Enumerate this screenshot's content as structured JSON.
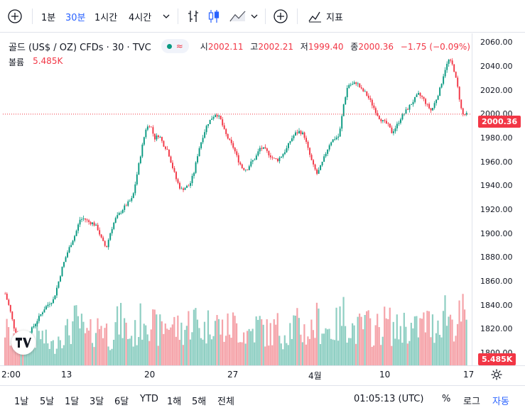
{
  "toolbar": {
    "add_symbol": "+",
    "intervals": [
      "1분",
      "30분",
      "1시간",
      "4시간"
    ],
    "active_interval": "30분",
    "indicators_label": "지표",
    "compare_symbol": "+"
  },
  "legend": {
    "title": "골드 (US$ / OZ) CFDs · 30 · TVC",
    "approx_icon": "≈",
    "open_label": "시",
    "open": "2002.11",
    "high_label": "고",
    "high": "2002.21",
    "low_label": "저",
    "low": "1999.40",
    "close_label": "종",
    "close": "2000.36",
    "change": "−1.75 (−0.09%)",
    "volume_label": "볼륨",
    "volume": "5.485K"
  },
  "price_axis": {
    "ticks": [
      "2060.00",
      "2040.00",
      "2020.00",
      "2000.00",
      "1980.00",
      "1960.00",
      "1940.00",
      "1920.00",
      "1900.00",
      "1880.00",
      "1860.00",
      "1840.00",
      "1820.00",
      "1800.00"
    ],
    "current_price": "2000.36",
    "current_volume": "5.485K"
  },
  "time_axis": {
    "ticks": [
      "2:00",
      "13",
      "20",
      "27",
      "4월",
      "10",
      "17"
    ]
  },
  "bottom": {
    "ranges": [
      "1날",
      "5날",
      "1달",
      "3달",
      "6달",
      "YTD",
      "1해",
      "5해",
      "전체"
    ],
    "clock": "01:05:13 (UTC)",
    "percent": "%",
    "log": "로그",
    "auto": "자동"
  },
  "colors": {
    "up": "#089981",
    "down": "#f23645",
    "accent": "#2962ff"
  },
  "chart_data": {
    "type": "candlestick",
    "title": "골드 (US$ / OZ) CFDs · 30 · TVC",
    "ylim": [
      1790,
      2068
    ],
    "price_path": [
      1850,
      1838,
      1822,
      1814,
      1812,
      1816,
      1820,
      1826,
      1832,
      1838,
      1842,
      1845,
      1858,
      1872,
      1883,
      1892,
      1900,
      1912,
      1913,
      1910,
      1909,
      1905,
      1895,
      1888,
      1902,
      1912,
      1917,
      1922,
      1926,
      1930,
      1950,
      1970,
      1988,
      1992,
      1980,
      1983,
      1975,
      1970,
      1957,
      1945,
      1937,
      1939,
      1941,
      1952,
      1970,
      1982,
      1992,
      1997,
      2001,
      1996,
      1985,
      1978,
      1972,
      1962,
      1955,
      1954,
      1960,
      1964,
      1972,
      1971,
      1967,
      1963,
      1962,
      1966,
      1971,
      1979,
      1984,
      1986,
      1983,
      1970,
      1958,
      1950,
      1958,
      1968,
      1977,
      1980,
      1982,
      2008,
      2025,
      2025,
      2027,
      2021,
      2018,
      2012,
      2005,
      1998,
      1994,
      1992,
      1985,
      1990,
      1997,
      2002,
      2007,
      2012,
      2017,
      2014,
      2008,
      2003,
      2012,
      2022,
      2037,
      2046,
      2040,
      2022,
      2000,
      2000
    ],
    "volume_path": [
      0.6,
      0.45,
      0.35,
      0.35,
      0.3,
      0.35,
      0.4,
      0.45,
      0.5,
      0.4,
      0.35,
      0.3,
      0.45,
      0.55,
      0.5,
      0.6,
      0.7,
      0.65,
      0.5,
      0.45,
      0.55,
      0.6,
      0.7,
      0.55,
      0.45,
      0.6,
      0.7,
      0.65,
      0.5,
      0.45,
      0.55,
      0.7,
      0.9,
      0.75,
      0.6,
      0.55,
      0.6,
      0.7,
      0.65,
      0.6,
      0.55,
      0.6,
      0.7,
      0.75,
      0.65,
      0.55,
      0.6,
      0.8,
      0.7,
      0.6,
      0.55,
      0.6,
      0.65,
      0.6,
      0.55,
      0.5,
      0.55,
      0.6,
      0.65,
      0.55,
      0.5,
      0.55,
      0.6,
      0.5,
      0.55,
      0.6,
      0.65,
      0.6,
      0.55,
      0.5,
      0.6,
      0.7,
      0.65,
      0.6,
      0.55,
      0.6,
      0.65,
      0.8,
      0.7,
      0.6,
      0.55,
      0.6,
      0.65,
      0.6,
      0.55,
      0.6,
      0.65,
      0.7,
      0.6,
      0.55,
      0.6,
      0.65,
      0.6,
      0.55,
      0.6,
      0.65,
      0.7,
      0.6,
      0.65,
      0.75,
      0.9,
      0.8,
      0.7,
      0.65,
      0.85,
      0.6
    ],
    "volume_max": 1,
    "last_value": 2000.36
  }
}
